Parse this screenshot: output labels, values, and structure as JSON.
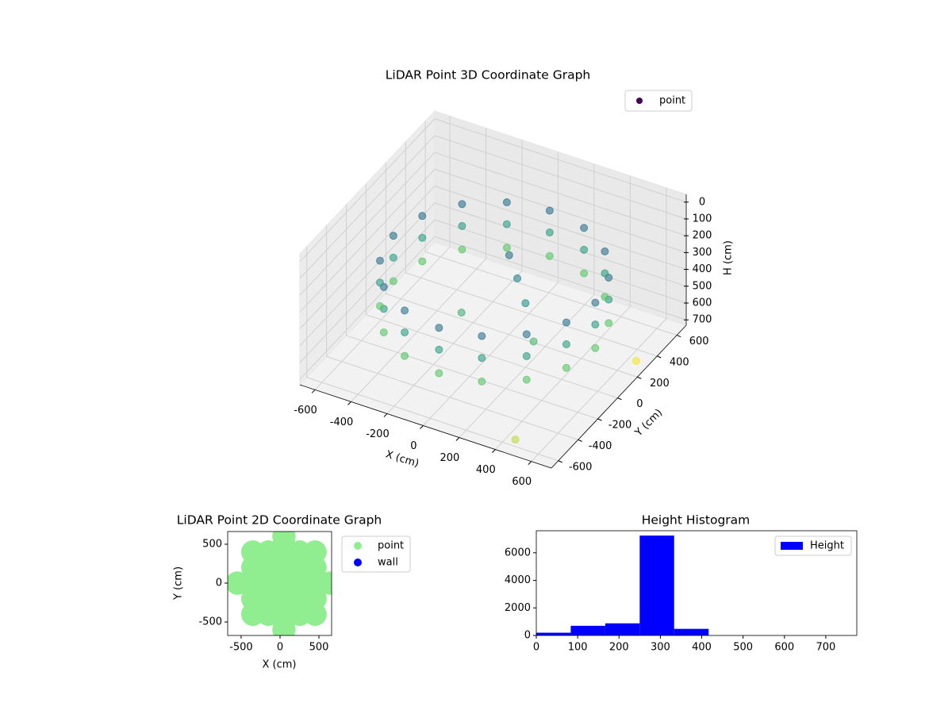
{
  "chart_data": [
    {
      "type": "scatter3d",
      "title": "LiDAR Point 3D Coordinate Graph",
      "xlabel": "X (cm)",
      "ylabel": "Y (cm)",
      "zlabel": "H (cm)",
      "xlim": [
        -684,
        711
      ],
      "ylim": [
        -670,
        695
      ],
      "zlim": [
        732,
        -46
      ],
      "xticks": [
        -600,
        -400,
        -200,
        0,
        200,
        400,
        600
      ],
      "yticks": [
        -600,
        -400,
        -200,
        0,
        200,
        400,
        600
      ],
      "zticks": [
        0,
        100,
        200,
        300,
        400,
        500,
        600,
        700
      ],
      "colormap": "viridis",
      "legend": "upper right",
      "series": [
        {
          "name": "point",
          "color": "#440154",
          "x": [
            560,
            517,
            396,
            214,
            0,
            -214,
            -396,
            -517,
            -560,
            -517,
            -396,
            -214,
            0,
            214,
            396,
            517,
            560,
            517,
            396,
            214,
            0,
            -214,
            -396,
            -517,
            -560,
            -517,
            -396,
            -214,
            0,
            214,
            396,
            517,
            560,
            517,
            396,
            214,
            0,
            -214,
            -396,
            -517,
            -560,
            -517,
            -396,
            -214,
            0,
            214,
            396,
            517,
            100,
            200,
            -100,
            0,
            300,
            650,
            500
          ],
          "y": [
            50,
            264,
            446,
            567,
            610,
            567,
            446,
            264,
            50,
            -164,
            -346,
            -467,
            -510,
            -467,
            -346,
            -164,
            50,
            264,
            446,
            567,
            610,
            567,
            446,
            264,
            50,
            -164,
            -346,
            -467,
            -510,
            -467,
            -346,
            -164,
            50,
            264,
            446,
            567,
            610,
            567,
            446,
            264,
            50,
            -164,
            -346,
            -467,
            -510,
            -467,
            -346,
            -164,
            100,
            0,
            -100,
            200,
            -100,
            300,
            -650
          ],
          "z": [
            250,
            250,
            250,
            250,
            250,
            250,
            250,
            250,
            250,
            250,
            250,
            250,
            250,
            250,
            250,
            250,
            380,
            380,
            380,
            380,
            380,
            380,
            380,
            380,
            380,
            380,
            380,
            380,
            380,
            380,
            380,
            380,
            520,
            520,
            520,
            520,
            520,
            520,
            520,
            520,
            520,
            520,
            520,
            520,
            520,
            520,
            520,
            520,
            300,
            350,
            450,
            260,
            480,
            720,
            650
          ]
        }
      ]
    },
    {
      "type": "scatter",
      "title": "LiDAR Point 2D Coordinate Graph",
      "xlabel": "X (cm)",
      "ylabel": "Y (cm)",
      "xlim": [
        -673,
        663
      ],
      "ylim": [
        -673,
        663
      ],
      "xticks": [
        -500,
        0,
        500
      ],
      "yticks": [
        -500,
        0,
        500
      ],
      "legend": "outside right",
      "series": [
        {
          "name": "point",
          "color": "lightgreen",
          "x": [
            -550,
            -350,
            -350,
            -350,
            -350,
            -350,
            -150,
            -150,
            -150,
            -150,
            -150,
            50,
            50,
            50,
            50,
            50,
            50,
            50,
            250,
            250,
            250,
            250,
            250,
            450,
            450,
            450,
            450,
            450,
            650
          ],
          "y": [
            0,
            -400,
            -200,
            0,
            200,
            400,
            -400,
            -200,
            0,
            200,
            400,
            -600,
            -400,
            -200,
            0,
            200,
            400,
            600,
            -400,
            -200,
            0,
            200,
            400,
            -400,
            -200,
            0,
            200,
            400,
            0
          ]
        },
        {
          "name": "wall",
          "color": "blue",
          "x": [],
          "y": []
        }
      ]
    },
    {
      "type": "histogram",
      "title": "Height Histogram",
      "name": "Height",
      "color": "blue",
      "bins": [
        0,
        83.3,
        166.7,
        250,
        333.3,
        416.7,
        500,
        583.3,
        666.7,
        750
      ],
      "counts": [
        200,
        700,
        880,
        7250,
        480,
        3,
        2,
        1,
        4
      ],
      "xlim": [
        0,
        775
      ],
      "ylim": [
        0,
        7600
      ],
      "xticks": [
        0,
        100,
        200,
        300,
        400,
        500,
        600,
        700
      ],
      "yticks": [
        0,
        2000,
        4000,
        6000
      ],
      "legend": "upper right"
    }
  ]
}
